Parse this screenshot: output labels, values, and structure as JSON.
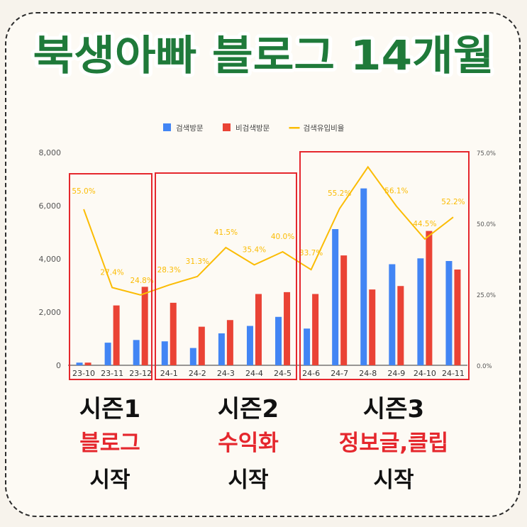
{
  "title": "북생아빠 블로그 14개월",
  "chart_data": {
    "type": "bar",
    "categories": [
      "23-10",
      "23-11",
      "23-12",
      "24-1",
      "24-2",
      "24-3",
      "24-4",
      "24-5",
      "24-6",
      "24-7",
      "24-8",
      "24-9",
      "24-10",
      "24-11"
    ],
    "series": [
      {
        "name": "검색방문",
        "kind": "bar",
        "axis": "left",
        "color": "#4285f4",
        "values": [
          100,
          850,
          950,
          900,
          650,
          1200,
          1480,
          1820,
          1380,
          5120,
          6650,
          3800,
          4020,
          3920
        ]
      },
      {
        "name": "비검색방문",
        "kind": "bar",
        "axis": "left",
        "color": "#ea4335",
        "values": [
          100,
          2250,
          2950,
          2350,
          1450,
          1700,
          2680,
          2750,
          2680,
          4130,
          2850,
          2980,
          5050,
          3600
        ]
      },
      {
        "name": "검색유입비율",
        "kind": "line",
        "axis": "right",
        "color": "#fbbc04",
        "values": [
          55.0,
          27.4,
          24.8,
          28.3,
          31.3,
          41.5,
          35.4,
          40.0,
          33.7,
          55.2,
          69.9,
          56.1,
          44.5,
          52.2
        ]
      }
    ],
    "point_labels": [
      {
        "index": 0,
        "text": "55.0%"
      },
      {
        "index": 1,
        "text": "27.4%"
      },
      {
        "index": 2,
        "text": "24.8%"
      },
      {
        "index": 3,
        "text": "28.3%"
      },
      {
        "index": 4,
        "text": "31.3%"
      },
      {
        "index": 5,
        "text": "41.5%"
      },
      {
        "index": 6,
        "text": "35.4%"
      },
      {
        "index": 7,
        "text": "40.0%"
      },
      {
        "index": 8,
        "text": "33.7%"
      },
      {
        "index": 9,
        "text": "55.2%"
      },
      {
        "index": 11,
        "text": "56.1%"
      },
      {
        "index": 12,
        "text": "44.5%"
      },
      {
        "index": 13,
        "text": "52.2%"
      }
    ],
    "y_left": {
      "min": 0,
      "max": 8000,
      "ticks": [
        "0",
        "2,000",
        "4,000",
        "6,000",
        "8,000"
      ],
      "tick_values": [
        0,
        2000,
        4000,
        6000,
        8000
      ]
    },
    "y_right": {
      "min": 0,
      "max": 75,
      "ticks": [
        "0.0%",
        "25.0%",
        "50.0%",
        "75.0%"
      ],
      "tick_values": [
        0,
        25,
        50,
        75
      ]
    },
    "legend_position": "top-center",
    "grid": false,
    "season_groups": [
      [
        0,
        2
      ],
      [
        3,
        7
      ],
      [
        8,
        13
      ]
    ],
    "highlight_color": "#e5272d"
  },
  "seasons": [
    {
      "line1": "시즌1",
      "line2": "블로그",
      "line3": "시작"
    },
    {
      "line1": "시즌2",
      "line2": "수익화",
      "line3": "시작"
    },
    {
      "line1": "시즌3",
      "line2": "정보글,클립",
      "line3": "시작"
    }
  ]
}
